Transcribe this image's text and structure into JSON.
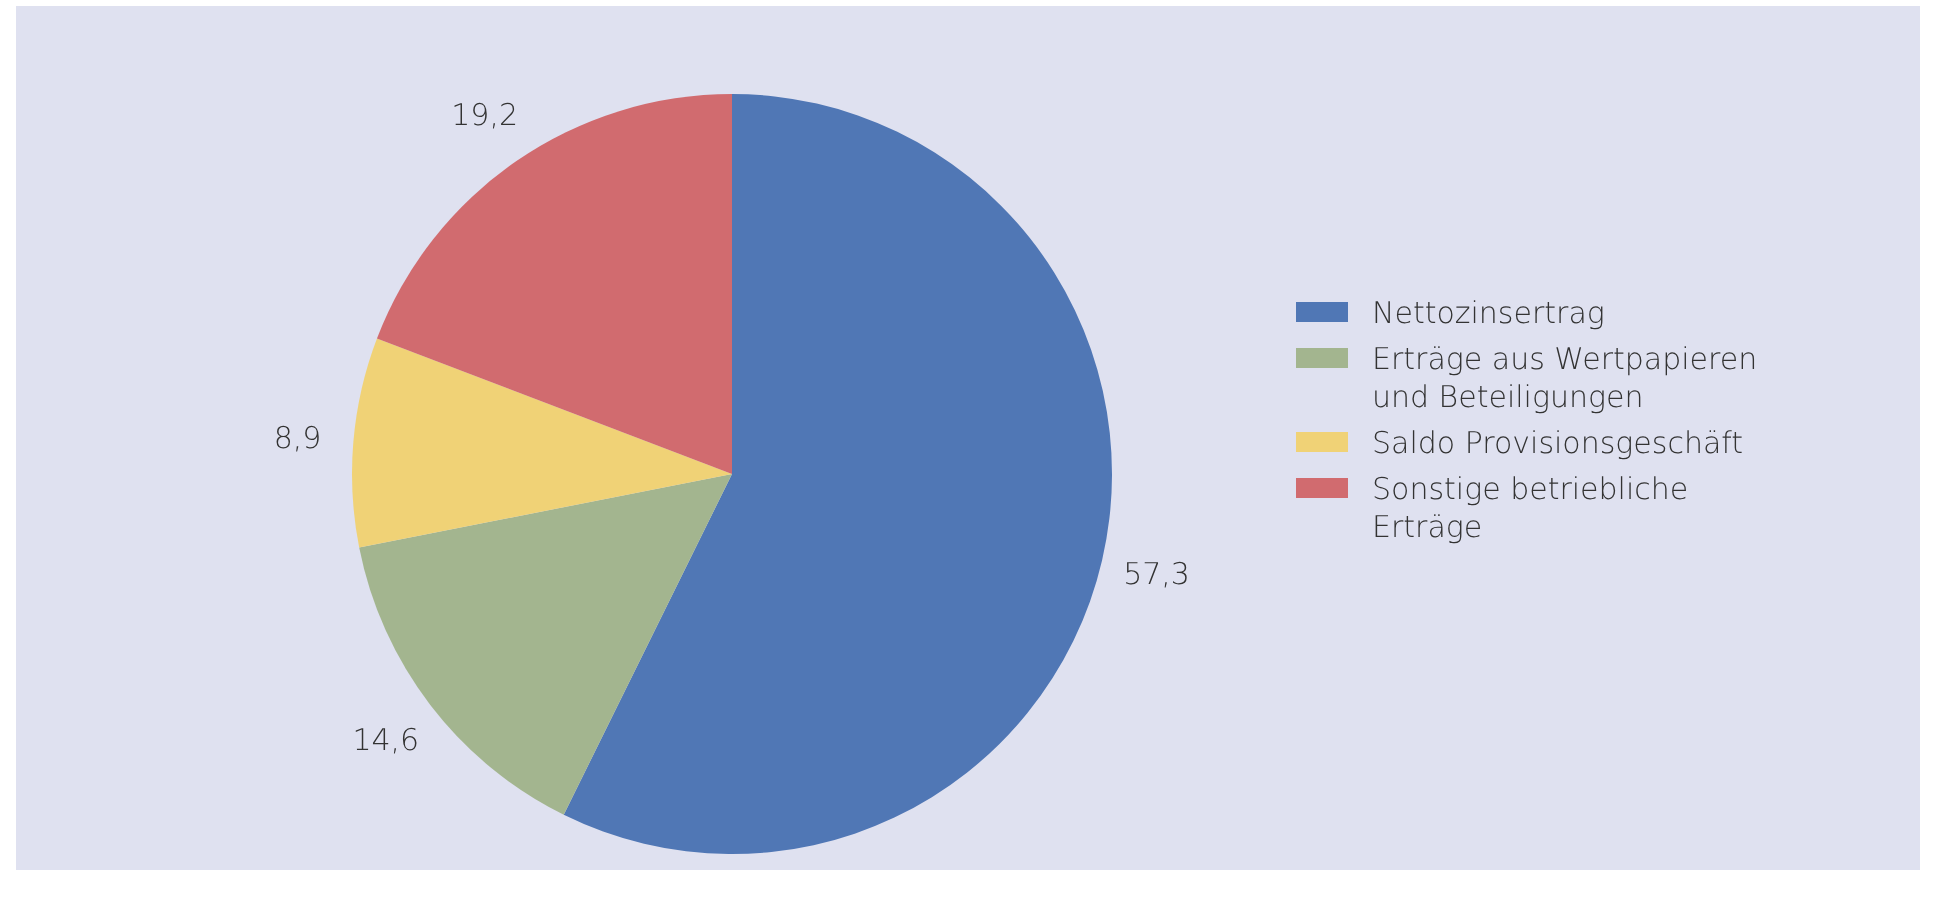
{
  "chart_data": {
    "type": "pie",
    "categories": [
      "Nettozinsertrag",
      "Erträge aus Wertpapieren und Beteiligungen",
      "Saldo Provisionsgeschäft",
      "Sonstige betriebliche Erträge"
    ],
    "values": [
      57.3,
      14.6,
      8.9,
      19.2
    ],
    "colors": [
      "#5077b5",
      "#a3b58f",
      "#f0d276",
      "#d16b6f"
    ],
    "value_labels": [
      "57,3",
      "14,6",
      "8,9",
      "19,2"
    ],
    "legend": "right"
  }
}
